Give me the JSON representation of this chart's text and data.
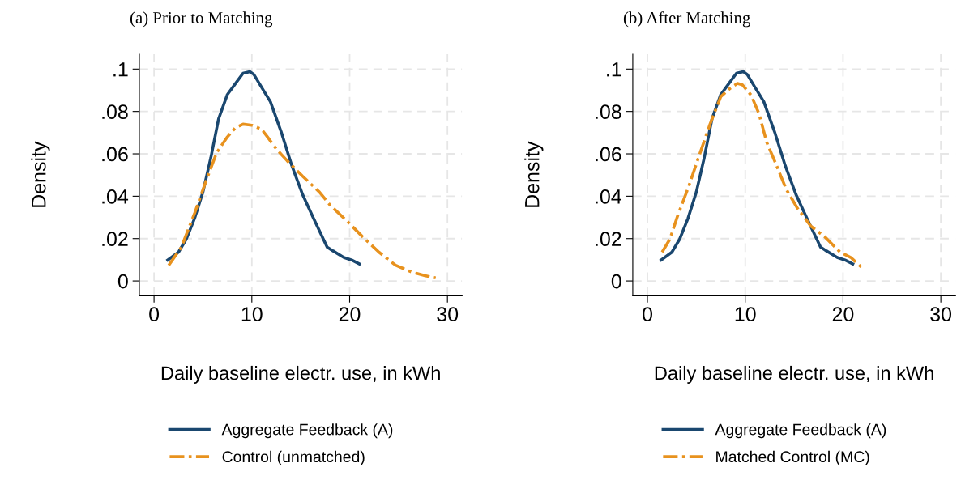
{
  "chart_data": [
    {
      "type": "line",
      "title": "(a) Prior to Matching",
      "xlabel": "Daily baseline electr. use, in kWh",
      "ylabel": "Density",
      "xlim": [
        -1.5,
        31.5
      ],
      "xticks": [
        0,
        10,
        20,
        30
      ],
      "ylim": [
        -0.007,
        0.107
      ],
      "yticks": [
        {
          "value": 0,
          "label": "0"
        },
        {
          "value": 0.02,
          "label": ".02"
        },
        {
          "value": 0.04,
          "label": ".04"
        },
        {
          "value": 0.06,
          "label": ".06"
        },
        {
          "value": 0.08,
          "label": ".08"
        },
        {
          "value": 0.1,
          "label": ".1"
        }
      ],
      "grid": true,
      "legend": "bottom",
      "series": [
        {
          "name": "Aggregate Feedback (A)",
          "color": "#1a476f",
          "line_style": "solid",
          "x": [
            1.4,
            2.5,
            3.3,
            4.15,
            5.0,
            5.8,
            6.6,
            7.5,
            8.3,
            9.1,
            9.8,
            10.2,
            11.0,
            11.9,
            13.0,
            14.1,
            15.2,
            16.3,
            17.7,
            18.3,
            19.4,
            20.2,
            21.0
          ],
          "values": [
            0.0099,
            0.0136,
            0.0198,
            0.0296,
            0.042,
            0.058,
            0.0765,
            0.088,
            0.093,
            0.098,
            0.0988,
            0.0975,
            0.0914,
            0.0846,
            0.0704,
            0.0543,
            0.0407,
            0.0296,
            0.016,
            0.0142,
            0.0111,
            0.0099,
            0.008
          ]
        },
        {
          "name": "Control (unmatched)",
          "color": "#e8921e",
          "line_style": "dashed",
          "x": [
            1.5,
            2.8,
            4.15,
            5.3,
            6.4,
            7.5,
            8.3,
            9.1,
            10.0,
            11.0,
            11.6,
            12.5,
            13.6,
            15.2,
            16.9,
            18.0,
            19.7,
            21.3,
            23.0,
            24.7,
            26.3,
            27.7,
            28.8
          ],
          "values": [
            0.0074,
            0.016,
            0.032,
            0.047,
            0.0605,
            0.068,
            0.0722,
            0.074,
            0.0735,
            0.0716,
            0.068,
            0.0623,
            0.0568,
            0.0494,
            0.042,
            0.0358,
            0.0284,
            0.021,
            0.0136,
            0.0074,
            0.0043,
            0.0025,
            0.0015
          ]
        }
      ]
    },
    {
      "type": "line",
      "title": "(b) After Matching",
      "xlabel": "Daily baseline electr. use, in kWh",
      "ylabel": "Density",
      "xlim": [
        -1.5,
        31.5
      ],
      "xticks": [
        0,
        10,
        20,
        30
      ],
      "ylim": [
        -0.007,
        0.107
      ],
      "yticks": [
        {
          "value": 0,
          "label": "0"
        },
        {
          "value": 0.02,
          "label": ".02"
        },
        {
          "value": 0.04,
          "label": ".04"
        },
        {
          "value": 0.06,
          "label": ".06"
        },
        {
          "value": 0.08,
          "label": ".08"
        },
        {
          "value": 0.1,
          "label": ".1"
        }
      ],
      "grid": true,
      "legend": "bottom",
      "series": [
        {
          "name": "Aggregate Feedback (A)",
          "color": "#1a476f",
          "line_style": "solid",
          "x": [
            1.4,
            2.5,
            3.3,
            4.15,
            5.0,
            5.8,
            6.6,
            7.5,
            8.3,
            9.1,
            9.8,
            10.2,
            11.0,
            11.9,
            13.0,
            14.1,
            15.2,
            16.3,
            17.7,
            18.3,
            19.4,
            20.2,
            21.0
          ],
          "values": [
            0.0099,
            0.0136,
            0.0198,
            0.0296,
            0.042,
            0.058,
            0.0765,
            0.088,
            0.093,
            0.098,
            0.0988,
            0.0975,
            0.0914,
            0.0846,
            0.0704,
            0.0543,
            0.0407,
            0.0296,
            0.016,
            0.0142,
            0.0111,
            0.0099,
            0.008
          ]
        },
        {
          "name": "Matched Control (MC)",
          "color": "#e8921e",
          "line_style": "dashed",
          "x": [
            1.5,
            2.3,
            3.1,
            4.2,
            5.3,
            6.4,
            7.5,
            8.4,
            9.2,
            9.7,
            10.6,
            11.4,
            12.2,
            13.1,
            14.2,
            15.3,
            16.7,
            18.1,
            19.7,
            20.8,
            21.9
          ],
          "values": [
            0.0136,
            0.0198,
            0.0309,
            0.0444,
            0.0593,
            0.074,
            0.087,
            0.0907,
            0.0932,
            0.0926,
            0.0877,
            0.079,
            0.0654,
            0.0556,
            0.0432,
            0.0346,
            0.0259,
            0.021,
            0.0136,
            0.0111,
            0.0064
          ]
        }
      ]
    }
  ]
}
